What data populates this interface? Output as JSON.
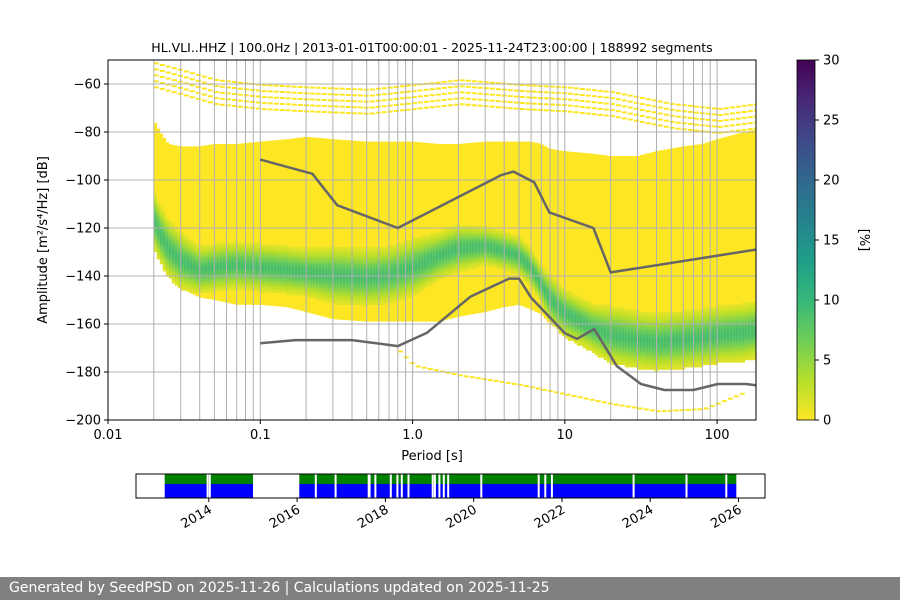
{
  "chart_data": {
    "type": "heatmap",
    "title": "HL.VLI..HHZ | 100.0Hz | 2013-01-01T00:00:01 - 2025-11-24T23:00:00 | 188992 segments",
    "xlabel": "Period [s]",
    "ylabel": "Amplitude [m²/s⁴/Hz] [dB]",
    "xscale": "log",
    "xlim": [
      0.01,
      180
    ],
    "ylim": [
      -200,
      -50
    ],
    "x_ticks": [
      {
        "value": 0.01,
        "label": "0.01"
      },
      {
        "value": 0.1,
        "label": "0.1"
      },
      {
        "value": 1,
        "label": "1.0"
      },
      {
        "value": 10,
        "label": "10"
      },
      {
        "value": 100,
        "label": "100"
      }
    ],
    "y_ticks": [
      {
        "value": -60,
        "label": "−60"
      },
      {
        "value": -80,
        "label": "−80"
      },
      {
        "value": -100,
        "label": "−100"
      },
      {
        "value": -120,
        "label": "−120"
      },
      {
        "value": -140,
        "label": "−140"
      },
      {
        "value": -160,
        "label": "−160"
      },
      {
        "value": -180,
        "label": "−180"
      },
      {
        "value": -200,
        "label": "−200"
      }
    ],
    "period_gridlines": [
      0.02,
      0.03,
      0.04,
      0.05,
      0.06,
      0.07,
      0.08,
      0.09,
      0.1,
      0.2,
      0.3,
      0.4,
      0.5,
      0.6,
      0.7,
      0.8,
      0.9,
      1,
      2,
      3,
      4,
      5,
      6,
      7,
      8,
      9,
      10,
      20,
      30,
      40,
      50,
      60,
      70,
      80,
      90,
      100
    ],
    "colorbar": {
      "label": "[%]",
      "range": [
        0,
        30
      ],
      "ticks": [
        {
          "value": 0,
          "label": "0"
        },
        {
          "value": 5,
          "label": "5"
        },
        {
          "value": 10,
          "label": "10"
        },
        {
          "value": 15,
          "label": "15"
        },
        {
          "value": 20,
          "label": "20"
        },
        {
          "value": 25,
          "label": "25"
        },
        {
          "value": 30,
          "label": "30"
        }
      ],
      "colormap": [
        "#fde725",
        "#b5de2b",
        "#6ece58",
        "#35b779",
        "#1f9e89",
        "#26828e",
        "#31688e",
        "#3e4989",
        "#482878",
        "#440154"
      ]
    },
    "psd_density": {
      "period": [
        0.02,
        0.022,
        0.025,
        0.03,
        0.04,
        0.05,
        0.07,
        0.1,
        0.15,
        0.2,
        0.3,
        0.5,
        0.7,
        1,
        1.5,
        2,
        3,
        4,
        5,
        6,
        7,
        8,
        10,
        15,
        20,
        30,
        40,
        60,
        80,
        100,
        150,
        180
      ],
      "upper_dB": [
        -75,
        -80,
        -85,
        -86,
        -86,
        -85,
        -85,
        -84,
        -83,
        -82,
        -83,
        -84,
        -84,
        -84,
        -85,
        -85,
        -84,
        -84,
        -84,
        -84,
        -85,
        -87,
        -88,
        -89,
        -90,
        -90,
        -88,
        -86,
        -85,
        -83,
        -80,
        -79
      ],
      "lower_dB": [
        -126,
        -127,
        -130,
        -145,
        -149,
        -150,
        -152,
        -152,
        -153,
        -155,
        -158,
        -159,
        -159,
        -159,
        -159,
        -157,
        -155,
        -153,
        -152,
        -154,
        -156,
        -160,
        -164,
        -170,
        -175,
        -177,
        -177,
        -176,
        -175,
        -175,
        -174,
        -173
      ],
      "mode_dB": [
        -116,
        -122,
        -128,
        -133,
        -137,
        -136,
        -135,
        -136,
        -137,
        -138,
        -139,
        -140,
        -139,
        -136,
        -131,
        -128,
        -127,
        -129,
        -131,
        -136,
        -143,
        -149,
        -155,
        -161,
        -164,
        -166,
        -167,
        -166,
        -165,
        -164,
        -163,
        -162
      ],
      "mode_width_dB": [
        6,
        6,
        6,
        6,
        5,
        5,
        5,
        5,
        5,
        5,
        6,
        6,
        6,
        6,
        5,
        5,
        4,
        4,
        4,
        4,
        4,
        5,
        5,
        5,
        6,
        6,
        6,
        6,
        6,
        6,
        6,
        6
      ]
    },
    "scatter_outliers": {
      "upper": {
        "period": [
          0.02,
          0.03,
          0.05,
          0.1,
          0.2,
          0.5,
          1,
          2,
          5,
          10,
          20,
          50,
          100,
          180
        ],
        "dB": [
          -51,
          -54,
          -58,
          -60,
          -61,
          -62,
          -60,
          -58,
          -60,
          -61,
          -63,
          -68,
          -70,
          -68
        ]
      },
      "lower": {
        "period": [
          0.8,
          1,
          2,
          5,
          10,
          20,
          40,
          80,
          150
        ],
        "dB": [
          -171,
          -177,
          -181,
          -185,
          -189,
          -193,
          -196,
          -195,
          -188
        ]
      }
    },
    "series": [
      {
        "name": "NHNM",
        "period": [
          0.1,
          0.22,
          0.32,
          0.8,
          3.8,
          4.6,
          6.3,
          7.9,
          15.4,
          20,
          180
        ],
        "dB": [
          -91.5,
          -97.4,
          -110.5,
          -120,
          -98,
          -96.5,
          -101,
          -113.5,
          -120,
          -138.5,
          -129
        ]
      },
      {
        "name": "NLNM",
        "period": [
          0.1,
          0.17,
          0.4,
          0.8,
          1.24,
          2.4,
          4.3,
          5,
          6,
          10,
          12,
          15.6,
          21.9,
          31.6,
          45,
          70,
          101,
          154,
          180
        ],
        "dB": [
          -168,
          -166.7,
          -166.7,
          -169.2,
          -163.7,
          -148.6,
          -141.1,
          -141.1,
          -149,
          -163.8,
          -166.2,
          -162.1,
          -177.5,
          -185,
          -187.5,
          -187.5,
          -185,
          -185,
          -185.5
        ]
      }
    ]
  },
  "availability": {
    "x_ticks": [
      "2014",
      "2016",
      "2018",
      "2020",
      "2022",
      "2024",
      "2026"
    ],
    "year_range": [
      2012.35,
      2026.6
    ],
    "segments": [
      {
        "start": 2013.0,
        "end": 2015.0
      },
      {
        "start": 2016.05,
        "end": 2025.95
      }
    ],
    "gaps": [
      2013.95,
      2014.0,
      2016.4,
      2016.85,
      2017.6,
      2017.62,
      2017.75,
      2018.1,
      2018.25,
      2018.35,
      2018.5,
      2019.05,
      2019.1,
      2019.2,
      2019.3,
      2019.4,
      2020.15,
      2021.45,
      2021.6,
      2021.75,
      2023.6,
      2024.8,
      2025.7
    ],
    "colors": {
      "top": "#008000",
      "bottom": "#0000ff"
    }
  },
  "footer": {
    "text": "Generated by SeedPSD on 2025-11-26 | Calculations updated on 2025-11-25"
  }
}
